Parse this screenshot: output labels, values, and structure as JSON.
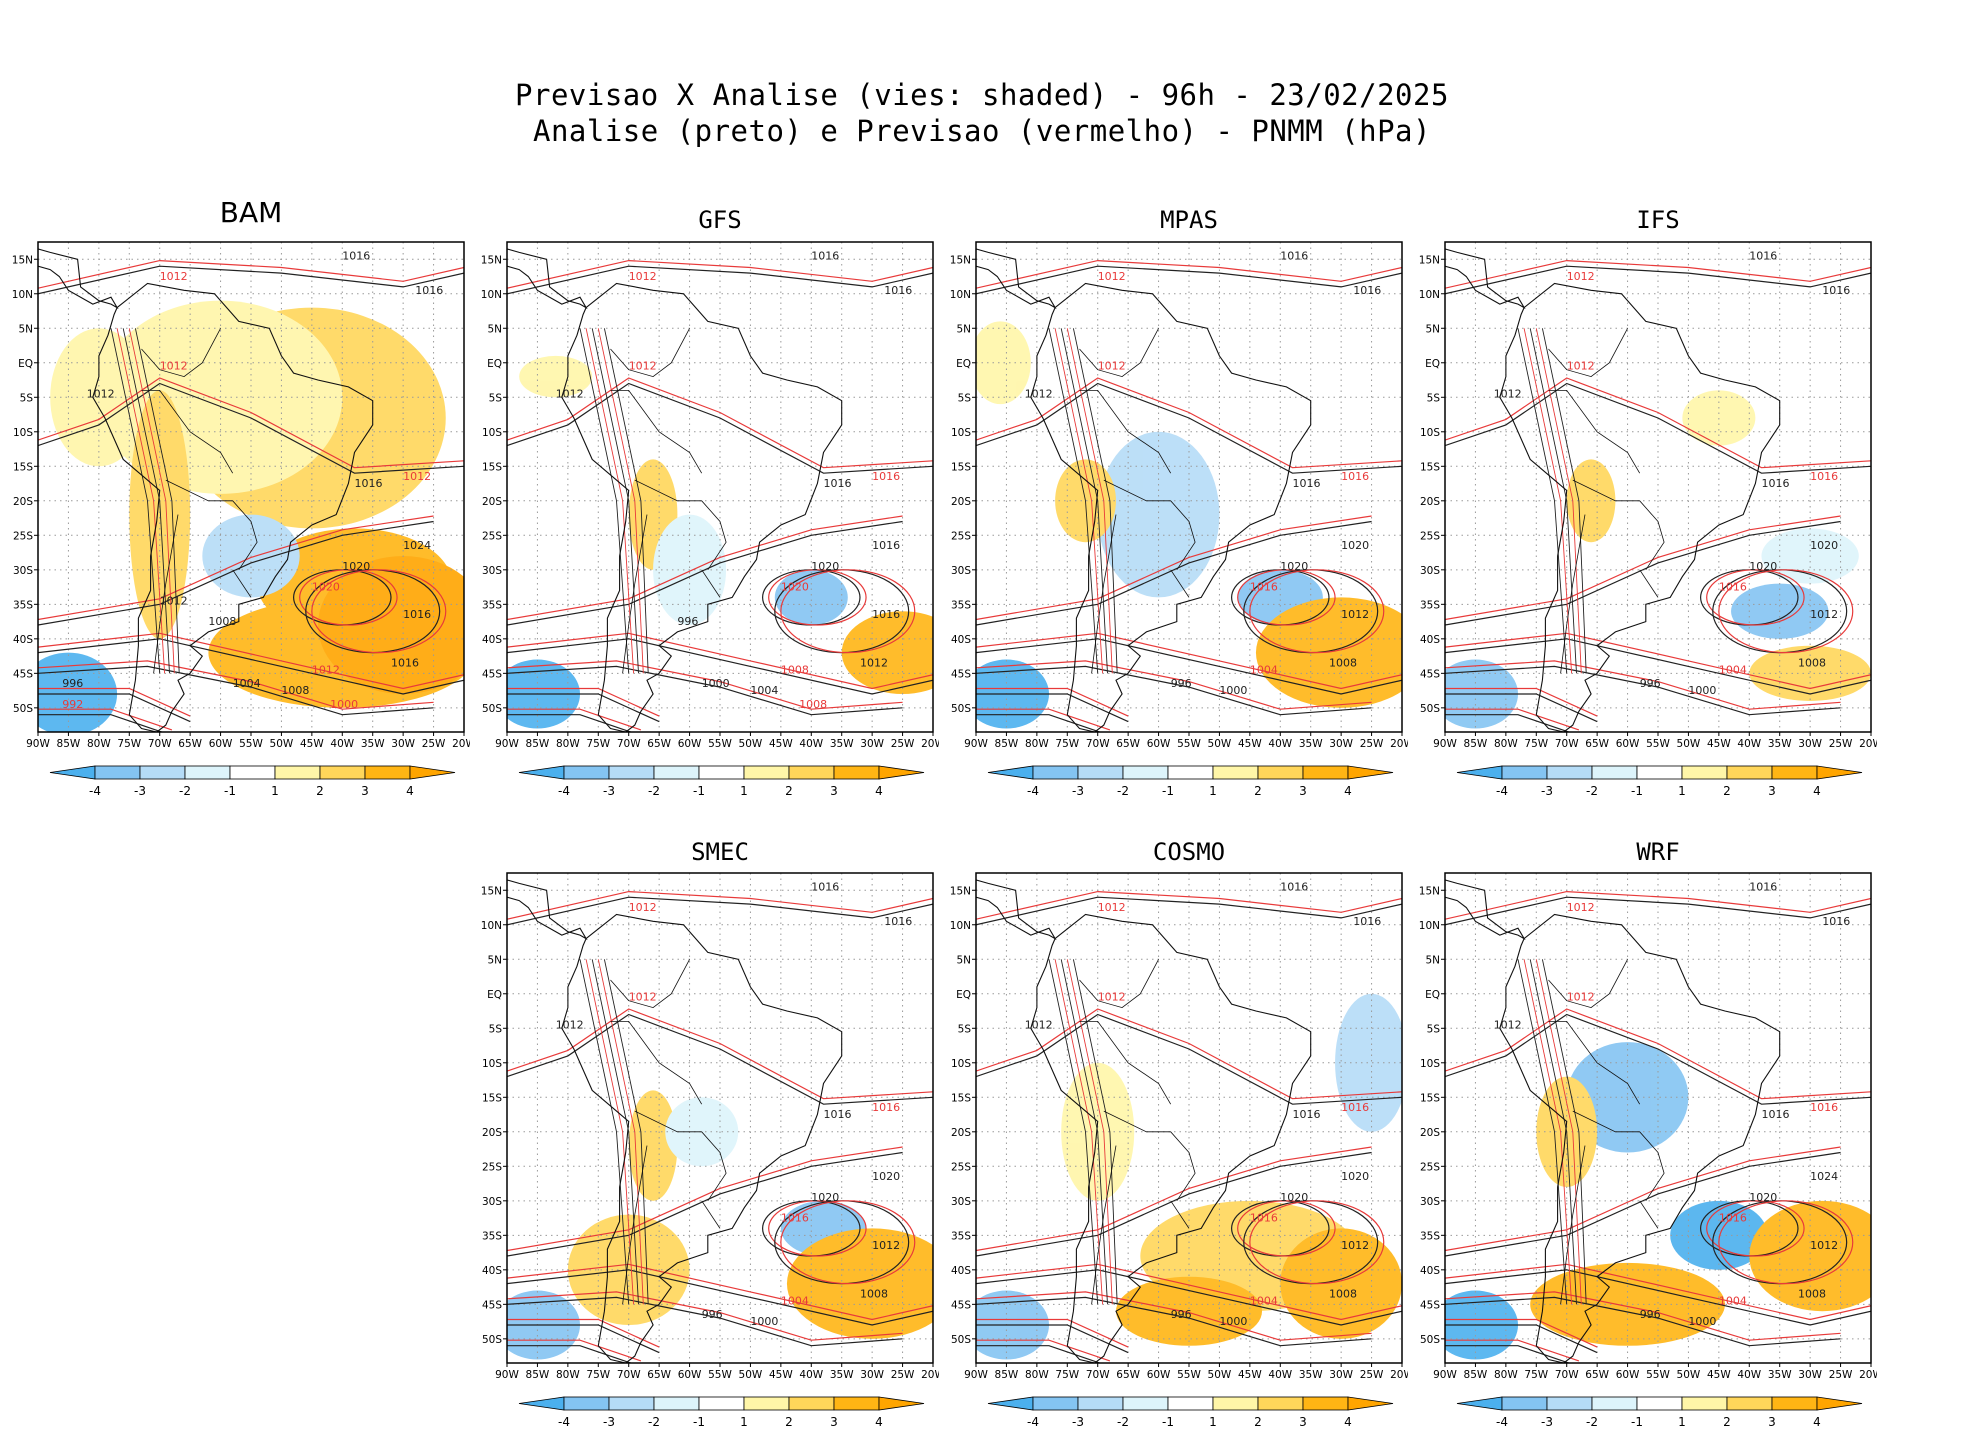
{
  "figure": {
    "title_line1": "Previsao X Analise (vies: shaded) - 96h - 23/02/2025",
    "title_line2": "Analise (preto) e Previsao (vermelho) - PNMM (hPa)"
  },
  "axes": {
    "lat_labels": [
      "15N",
      "10N",
      "5N",
      "EQ",
      "5S",
      "10S",
      "15S",
      "20S",
      "25S",
      "30S",
      "35S",
      "40S",
      "45S",
      "50S"
    ],
    "lon_labels": [
      "90W",
      "85W",
      "80W",
      "75W",
      "70W",
      "65W",
      "60W",
      "55W",
      "50W",
      "45W",
      "40W",
      "35W",
      "30W",
      "25W",
      "20W"
    ]
  },
  "colorbar": {
    "labels": [
      "-4",
      "-3",
      "-2",
      "-1",
      "1",
      "2",
      "3",
      "4"
    ],
    "colors": [
      "#4bb0ee",
      "#84c4f2",
      "#b5dcf7",
      "#ddf4fb",
      "#ffffff",
      "#fff6a8",
      "#ffd65a",
      "#ffb514",
      "#ffa500"
    ]
  },
  "isobar_colors": {
    "analysis": "#222222",
    "forecast": "#e83a3a"
  },
  "panels": [
    {
      "name": "BAM",
      "isobars": [
        "1012",
        "1016",
        "1016",
        "1012",
        "1012",
        "1016",
        "1012",
        "1020",
        "1024",
        "1020",
        "1016",
        "1016",
        "1012",
        "1008",
        "1004",
        "1000",
        "1008",
        "1012",
        "992",
        "996"
      ]
    },
    {
      "name": "GFS",
      "isobars": [
        "1012",
        "1016",
        "1016",
        "1012",
        "1012",
        "1016",
        "1016",
        "1020",
        "1016",
        "1020",
        "1016",
        "1012",
        "1008",
        "1004",
        "1000",
        "1008",
        "996"
      ]
    },
    {
      "name": "MPAS",
      "isobars": [
        "1012",
        "1016",
        "1016",
        "1012",
        "1012",
        "1016",
        "1016",
        "1020",
        "1020",
        "1016",
        "1012",
        "1008",
        "1004",
        "1000",
        "996"
      ]
    },
    {
      "name": "IFS",
      "isobars": [
        "1012",
        "1016",
        "1016",
        "1012",
        "1012",
        "1016",
        "1016",
        "1020",
        "1020",
        "1016",
        "1012",
        "1008",
        "1004",
        "1000",
        "996"
      ]
    },
    {
      "name": "SMEC",
      "isobars": [
        "1012",
        "1016",
        "1016",
        "1012",
        "1012",
        "1016",
        "1016",
        "1020",
        "1020",
        "1016",
        "1012",
        "1008",
        "1004",
        "1000",
        "996"
      ]
    },
    {
      "name": "COSMO",
      "isobars": [
        "1012",
        "1016",
        "1016",
        "1012",
        "1012",
        "1016",
        "1016",
        "1020",
        "1020",
        "1016",
        "1012",
        "1008",
        "1004",
        "1000",
        "996"
      ]
    },
    {
      "name": "WRF",
      "isobars": [
        "1012",
        "1016",
        "1016",
        "1012",
        "1012",
        "1016",
        "1016",
        "1020",
        "1024",
        "1016",
        "1012",
        "1008",
        "1004",
        "1000",
        "996"
      ]
    }
  ]
}
